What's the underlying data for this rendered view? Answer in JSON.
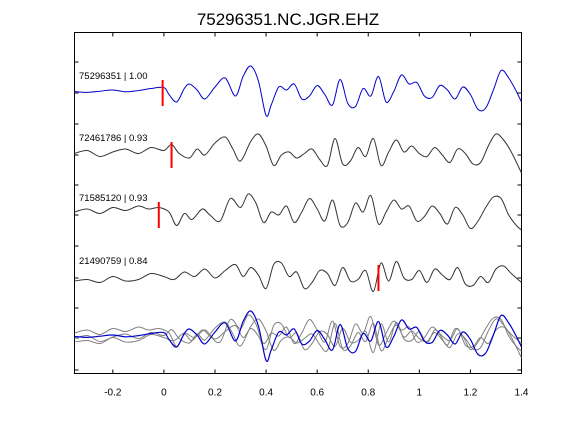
{
  "chart_data": {
    "type": "line",
    "title": "75296351.NC.JGR.EHZ",
    "xlabel": "",
    "ylabel": "",
    "xlim": [
      -0.35,
      1.4
    ],
    "xticks": [
      -0.2,
      0,
      0.2,
      0.4,
      0.6,
      0.8,
      1,
      1.2,
      1.4
    ],
    "xtick_labels": [
      "-0.2",
      "0",
      "0.2",
      "0.4",
      "0.6",
      "0.8",
      "1",
      "1.2",
      "1.4"
    ],
    "grid": false,
    "colors": {
      "master": "#0000cc",
      "trace": "#333333",
      "overlay": "#808080",
      "pick": "#ff0000"
    },
    "traces": [
      {
        "label": "75296351 | 1.00",
        "pick": -0.005,
        "color": "#0000cc",
        "x": [
          -0.35,
          -0.3,
          -0.25,
          -0.2,
          -0.15,
          -0.1,
          -0.05,
          0,
          0.02,
          0.05,
          0.08,
          0.1,
          0.13,
          0.16,
          0.2,
          0.24,
          0.28,
          0.31,
          0.34,
          0.37,
          0.4,
          0.42,
          0.45,
          0.48,
          0.51,
          0.54,
          0.57,
          0.6,
          0.63,
          0.66,
          0.69,
          0.72,
          0.75,
          0.78,
          0.81,
          0.84,
          0.87,
          0.9,
          0.93,
          0.96,
          0.99,
          1.02,
          1.05,
          1.08,
          1.11,
          1.14,
          1.17,
          1.2,
          1.23,
          1.26,
          1.29,
          1.32,
          1.35,
          1.38,
          1.4
        ],
        "y": [
          0.05,
          0.02,
          0.06,
          0.1,
          0.04,
          0.08,
          0.15,
          0.18,
          -0.05,
          -0.3,
          0.15,
          0.3,
          0.1,
          -0.2,
          0.2,
          0.5,
          -0.1,
          0.55,
          0.9,
          0.4,
          -0.75,
          -0.4,
          0.2,
          0.1,
          0.3,
          -0.2,
          -0.1,
          0.25,
          -0.05,
          -0.4,
          0.45,
          -0.35,
          -0.45,
          0.15,
          -0.1,
          0.55,
          -0.3,
          0.05,
          0.6,
          0.3,
          0.35,
          -0.1,
          -0.15,
          0.25,
          0.1,
          -0.2,
          0.2,
          -0.05,
          -0.55,
          -0.5,
          0.1,
          0.75,
          0.5,
          0.05,
          -0.3
        ]
      },
      {
        "label": "72461786 | 0.93",
        "pick": 0.03,
        "color": "#333333",
        "x": [
          -0.35,
          -0.3,
          -0.25,
          -0.2,
          -0.15,
          -0.1,
          -0.05,
          0,
          0.03,
          0.06,
          0.1,
          0.13,
          0.16,
          0.2,
          0.24,
          0.27,
          0.3,
          0.34,
          0.37,
          0.4,
          0.43,
          0.46,
          0.49,
          0.52,
          0.55,
          0.58,
          0.61,
          0.64,
          0.67,
          0.7,
          0.73,
          0.76,
          0.79,
          0.82,
          0.85,
          0.88,
          0.91,
          0.94,
          0.97,
          1.0,
          1.03,
          1.06,
          1.09,
          1.12,
          1.15,
          1.18,
          1.21,
          1.24,
          1.27,
          1.3,
          1.33,
          1.36,
          1.4
        ],
        "y": [
          0.05,
          0.15,
          -0.05,
          0.1,
          0.2,
          0.05,
          0.25,
          0.15,
          0.35,
          0.05,
          -0.1,
          0.2,
          0.0,
          0.4,
          0.6,
          0.2,
          -0.2,
          0.45,
          0.7,
          0.3,
          -0.35,
          0.0,
          0.1,
          -0.1,
          0.05,
          0.2,
          -0.15,
          -0.35,
          0.55,
          -0.3,
          -0.2,
          0.25,
          -0.05,
          0.55,
          -0.35,
          0.1,
          0.5,
          0.1,
          0.3,
          0.05,
          -0.05,
          0.25,
          0.0,
          -0.25,
          0.2,
          0.05,
          -0.3,
          -0.25,
          0.3,
          0.7,
          0.5,
          0.1,
          -0.6
        ]
      },
      {
        "label": "71585120 | 0.93",
        "pick": -0.02,
        "color": "#333333",
        "x": [
          -0.35,
          -0.3,
          -0.25,
          -0.2,
          -0.15,
          -0.1,
          -0.06,
          -0.02,
          0.02,
          0.05,
          0.08,
          0.11,
          0.15,
          0.18,
          0.22,
          0.26,
          0.3,
          0.33,
          0.36,
          0.39,
          0.42,
          0.45,
          0.48,
          0.51,
          0.54,
          0.57,
          0.6,
          0.63,
          0.66,
          0.69,
          0.72,
          0.75,
          0.78,
          0.81,
          0.84,
          0.87,
          0.9,
          0.93,
          0.96,
          0.99,
          1.02,
          1.05,
          1.08,
          1.11,
          1.14,
          1.17,
          1.2,
          1.23,
          1.26,
          1.29,
          1.32,
          1.35,
          1.38,
          1.4
        ],
        "y": [
          0.1,
          0.2,
          0.05,
          0.25,
          0.15,
          0.3,
          0.2,
          0.25,
          0.1,
          -0.35,
          0.05,
          -0.15,
          0.2,
          0.0,
          -0.2,
          0.55,
          0.25,
          0.7,
          0.4,
          -0.25,
          0.1,
          0.0,
          0.3,
          -0.25,
          0.1,
          0.55,
          0.2,
          -0.2,
          0.5,
          -0.35,
          -0.25,
          0.4,
          0.1,
          0.65,
          -0.3,
          0.1,
          0.5,
          0.2,
          0.3,
          -0.2,
          -0.05,
          0.3,
          0.05,
          -0.3,
          0.25,
          0.0,
          -0.45,
          -0.2,
          0.25,
          0.6,
          0.55,
          0.0,
          -0.35,
          -0.5
        ]
      },
      {
        "label": "21490759 | 0.84",
        "pick": 0.84,
        "color": "#333333",
        "x": [
          -0.35,
          -0.3,
          -0.25,
          -0.2,
          -0.15,
          -0.1,
          -0.05,
          0,
          0.04,
          0.08,
          0.12,
          0.16,
          0.2,
          0.24,
          0.28,
          0.31,
          0.34,
          0.37,
          0.4,
          0.43,
          0.46,
          0.49,
          0.52,
          0.55,
          0.58,
          0.61,
          0.64,
          0.67,
          0.7,
          0.73,
          0.76,
          0.79,
          0.82,
          0.85,
          0.88,
          0.91,
          0.94,
          0.97,
          1.0,
          1.03,
          1.06,
          1.09,
          1.12,
          1.15,
          1.18,
          1.21,
          1.24,
          1.27,
          1.3,
          1.33,
          1.36,
          1.4
        ],
        "y": [
          -0.1,
          -0.05,
          -0.15,
          0.05,
          -0.1,
          -0.05,
          0.15,
          0.05,
          -0.05,
          0.2,
          0.05,
          0.3,
          0.0,
          0.25,
          0.45,
          0.05,
          0.35,
          0.1,
          -0.35,
          0.45,
          0.5,
          0.05,
          0.2,
          -0.35,
          -0.15,
          0.25,
          0.15,
          -0.25,
          0.35,
          -0.1,
          -0.05,
          0.25,
          -0.45,
          0.5,
          -0.1,
          0.55,
          0.0,
          -0.05,
          0.25,
          -0.15,
          0.3,
          0.1,
          -0.05,
          0.35,
          -0.2,
          -0.25,
          0.05,
          -0.15,
          0.3,
          0.4,
          0.15,
          -0.15
        ]
      }
    ],
    "overlay_label": ""
  }
}
